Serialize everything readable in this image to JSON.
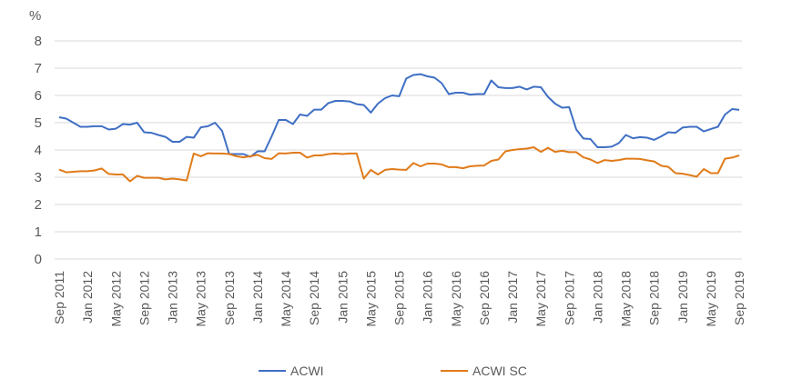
{
  "chart_data": {
    "type": "line",
    "title": "",
    "ylabel": "%",
    "xlabel": "",
    "ylim": [
      0,
      8
    ],
    "yticks": [
      0,
      1,
      2,
      3,
      4,
      5,
      6,
      7,
      8
    ],
    "grid": true,
    "legend_placement": "bottom",
    "x_start": "Sep 2011",
    "x_end": "Sep 2019",
    "x_frequency": "monthly",
    "xtick_labels": [
      "Sep 2011",
      "Jan 2012",
      "May 2012",
      "Sep 2012",
      "Jan 2013",
      "May 2013",
      "Sep 2013",
      "Jan 2014",
      "May 2014",
      "Sep 2014",
      "Jan 2015",
      "May 2015",
      "Sep 2015",
      "Jan 2016",
      "May 2016",
      "Sep 2016",
      "Jan 2017",
      "May 2017",
      "Sep 2017",
      "Jan 2018",
      "May 2018",
      "Sep 2018",
      "Jan 2019",
      "May 2019",
      "Sep 2019"
    ],
    "series": [
      {
        "name": "ACWI",
        "color": "#3f6fc4",
        "values": [
          5.2,
          5.15,
          5.0,
          4.85,
          4.85,
          4.87,
          4.87,
          4.75,
          4.78,
          4.95,
          4.93,
          5.0,
          4.65,
          4.63,
          4.55,
          4.48,
          4.3,
          4.3,
          4.48,
          4.45,
          4.83,
          4.87,
          5.0,
          4.7,
          3.85,
          3.85,
          3.85,
          3.75,
          3.95,
          3.95,
          4.5,
          5.1,
          5.1,
          4.95,
          5.3,
          5.25,
          5.48,
          5.48,
          5.72,
          5.8,
          5.8,
          5.78,
          5.68,
          5.65,
          5.37,
          5.7,
          5.9,
          6.0,
          5.97,
          6.62,
          6.75,
          6.78,
          6.7,
          6.65,
          6.45,
          6.05,
          6.1,
          6.1,
          6.03,
          6.05,
          6.05,
          6.55,
          6.3,
          6.27,
          6.27,
          6.32,
          6.22,
          6.32,
          6.3,
          5.95,
          5.7,
          5.55,
          5.57,
          4.75,
          4.42,
          4.4,
          4.1,
          4.1,
          4.12,
          4.25,
          4.55,
          4.43,
          4.47,
          4.45,
          4.37,
          4.5,
          4.65,
          4.63,
          4.82,
          4.85,
          4.85,
          4.68,
          4.77,
          4.85,
          5.3,
          5.5,
          5.47
        ]
      },
      {
        "name": "ACWI SC",
        "color": "#e07b1a",
        "values": [
          3.28,
          3.18,
          3.2,
          3.22,
          3.22,
          3.25,
          3.32,
          3.12,
          3.1,
          3.1,
          2.85,
          3.05,
          2.98,
          2.98,
          2.98,
          2.92,
          2.95,
          2.92,
          2.88,
          3.87,
          3.77,
          3.88,
          3.87,
          3.87,
          3.85,
          3.77,
          3.73,
          3.77,
          3.82,
          3.7,
          3.67,
          3.88,
          3.87,
          3.9,
          3.9,
          3.72,
          3.8,
          3.8,
          3.85,
          3.87,
          3.85,
          3.87,
          3.87,
          2.95,
          3.27,
          3.1,
          3.27,
          3.3,
          3.28,
          3.27,
          3.52,
          3.4,
          3.5,
          3.5,
          3.47,
          3.37,
          3.37,
          3.33,
          3.4,
          3.42,
          3.43,
          3.6,
          3.65,
          3.95,
          4.0,
          4.03,
          4.05,
          4.1,
          3.93,
          4.08,
          3.93,
          3.97,
          3.92,
          3.92,
          3.73,
          3.65,
          3.52,
          3.63,
          3.6,
          3.63,
          3.68,
          3.68,
          3.67,
          3.62,
          3.58,
          3.42,
          3.38,
          3.15,
          3.13,
          3.08,
          3.02,
          3.3,
          3.15,
          3.15,
          3.68,
          3.72,
          3.8
        ]
      }
    ]
  }
}
